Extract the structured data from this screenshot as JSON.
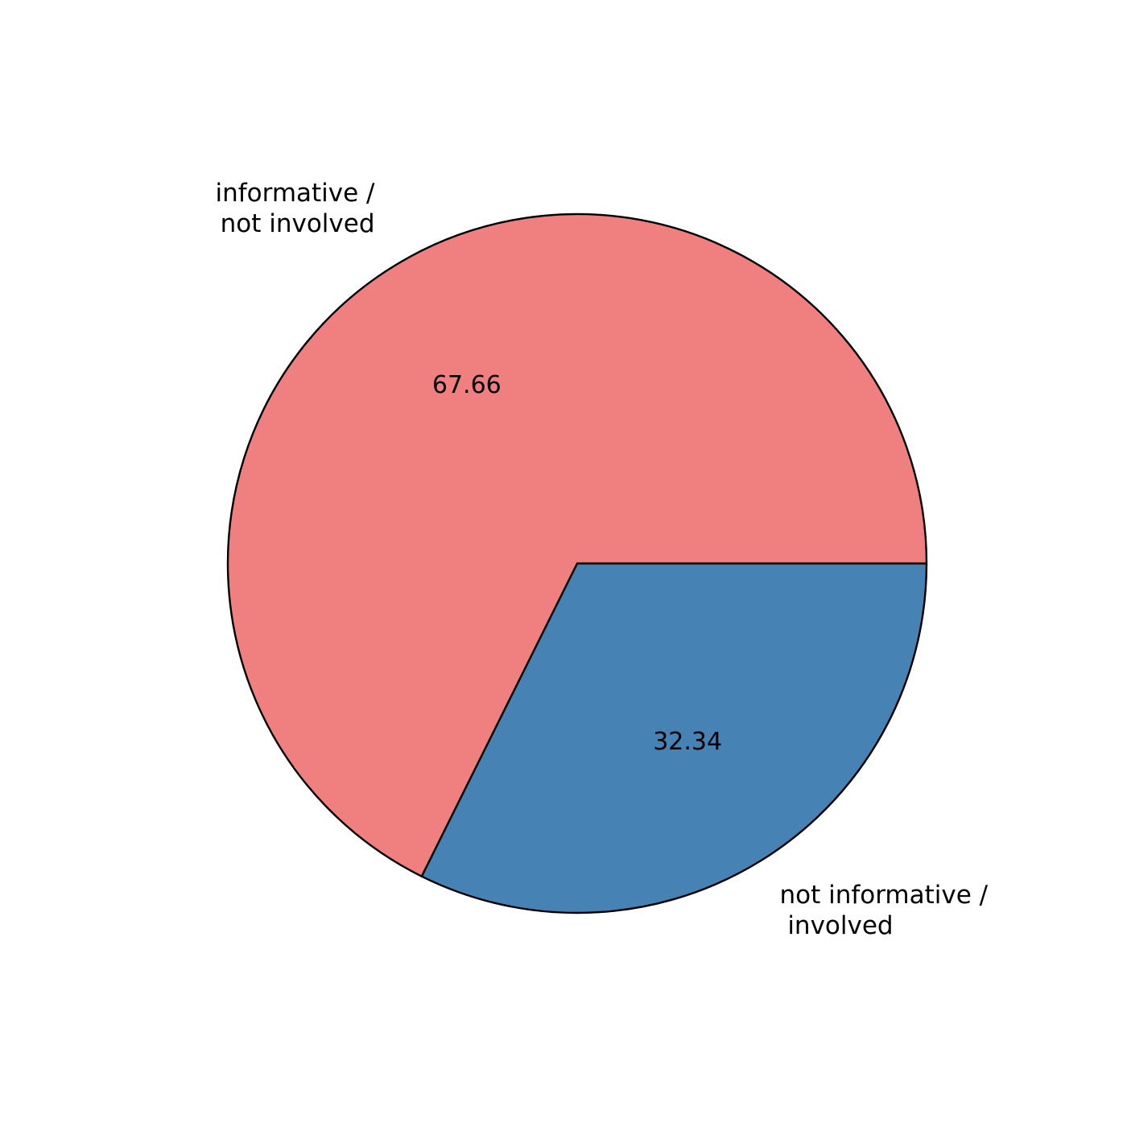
{
  "chart_data": {
    "type": "pie",
    "title": "",
    "slices": [
      {
        "label_lines": [
          "informative /",
          " not involved"
        ],
        "value": 67.66,
        "value_label": "67.66",
        "color": "#F08080"
      },
      {
        "label_lines": [
          "not informative /",
          " involved"
        ],
        "value": 32.34,
        "value_label": "32.34",
        "color": "#4682B4"
      }
    ],
    "start_angle_deg": 0,
    "direction": "counterclockwise",
    "edge_color": "#000000",
    "background": "#FFFFFF"
  }
}
